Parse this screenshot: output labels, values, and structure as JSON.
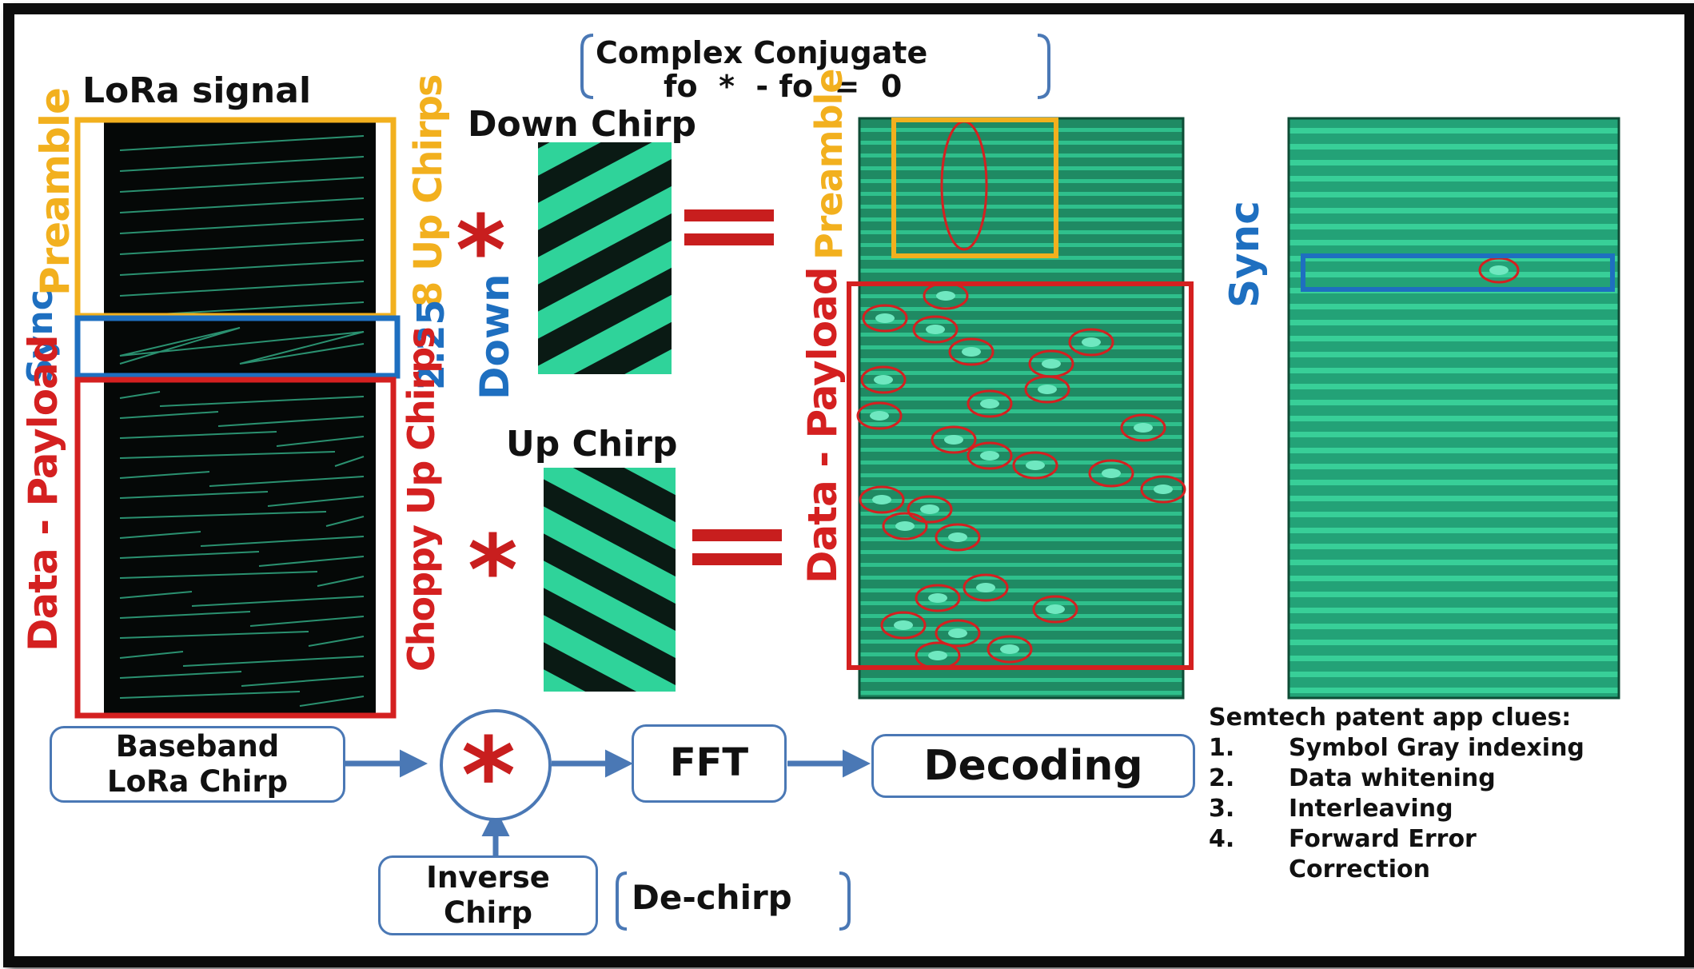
{
  "labels": {
    "lora_signal": "LoRa signal",
    "preamble_left": "Preamble",
    "sync_left": "Sync",
    "data_payload_left": "Data - Payload",
    "up_chirps_8": "8 Up Chirps",
    "down_225": "2.25",
    "down_word": "Down",
    "choppy_up_chirps": "Choppy Up Chirps",
    "down_chirp": "Down Chirp",
    "up_chirp": "Up Chirp",
    "complex_conjugate_line1": "Complex Conjugate",
    "complex_conjugate_line2": "fo  *  - fo  =  0",
    "preamble_mid": "Preamble",
    "data_payload_mid": "Data - Payload",
    "sync_right": "Sync"
  },
  "symbols": {
    "multiply": "*",
    "equals": "="
  },
  "pipeline": {
    "baseband_line1": "Baseband",
    "baseband_line2": "LoRa Chirp",
    "multiply": "*",
    "fft": "FFT",
    "decoding": "Decoding",
    "inverse_line1": "Inverse",
    "inverse_line2": "Chirp",
    "dechirp": "De-chirp"
  },
  "patent": {
    "title": "Semtech patent app clues:",
    "items": [
      {
        "num": "1.",
        "text": "Symbol Gray indexing"
      },
      {
        "num": "2.",
        "text": "Data whitening"
      },
      {
        "num": "3.",
        "text": "Interleaving"
      },
      {
        "num": "4.",
        "text": "Forward Error"
      },
      {
        "num": "",
        "text": "Correction"
      }
    ]
  },
  "colors": {
    "preamble": "#f2b01e",
    "sync": "#1e6fc0",
    "data": "#d42020",
    "spectrogram_green": "#2fc08c",
    "box_border": "#4a78b5"
  },
  "icons": [
    "arrow-right-icon",
    "arrow-up-icon",
    "bracket-icon"
  ]
}
